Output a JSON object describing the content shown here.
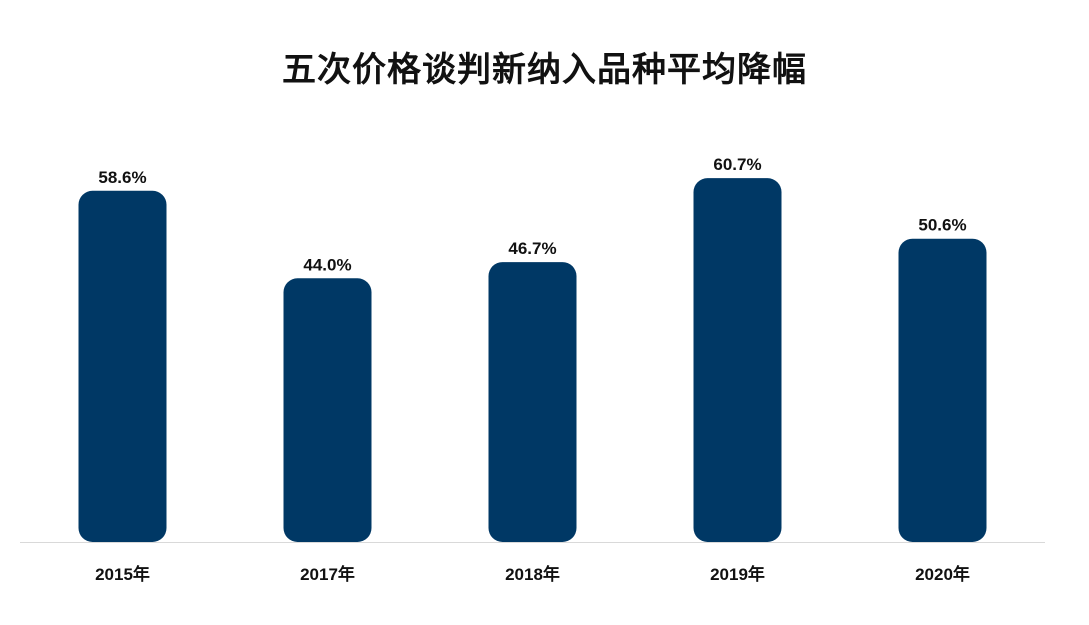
{
  "chart_data": {
    "type": "bar",
    "title": "五次价格谈判新纳入品种平均降幅",
    "categories": [
      "2015年",
      "2017年",
      "2018年",
      "2019年",
      "2020年"
    ],
    "values": [
      58.6,
      44.0,
      46.7,
      60.7,
      50.6
    ],
    "value_labels": [
      "58.6%",
      "44.0%",
      "46.7%",
      "60.7%",
      "50.6%"
    ],
    "xlabel": "",
    "ylabel": "",
    "ylim": [
      0,
      66.4
    ],
    "grid": false,
    "legend": "none",
    "colors": {
      "bar": "#003865",
      "baseline": "#d9d9d9",
      "text": "#111111"
    }
  }
}
